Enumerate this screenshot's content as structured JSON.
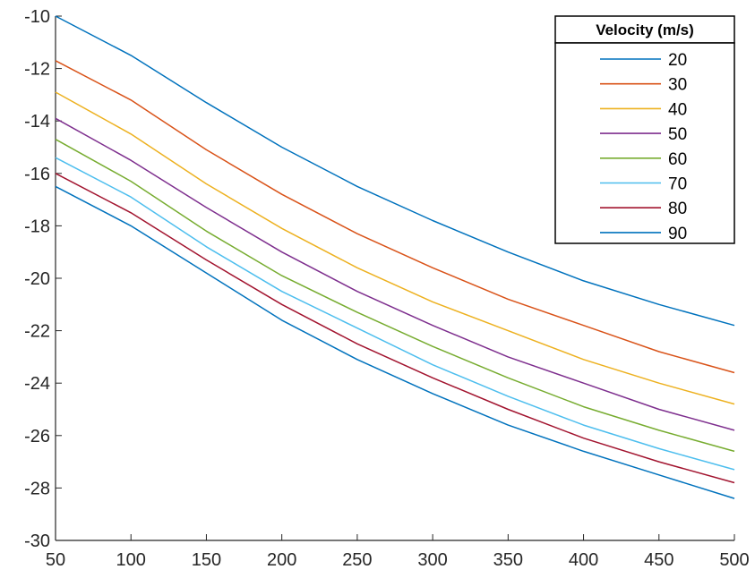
{
  "chart_data": {
    "type": "line",
    "title": "",
    "xlabel": "",
    "ylabel": "",
    "xlim": [
      50,
      500
    ],
    "ylim": [
      -30,
      -10
    ],
    "x_ticks": [
      "50",
      "100",
      "150",
      "200",
      "250",
      "300",
      "350",
      "400",
      "450",
      "500"
    ],
    "y_ticks": [
      "-10",
      "-12",
      "-14",
      "-16",
      "-18",
      "-20",
      "-22",
      "-24",
      "-26",
      "-28",
      "-30"
    ],
    "x": [
      50,
      100,
      150,
      200,
      250,
      300,
      350,
      400,
      450,
      500
    ],
    "legend": {
      "title": "Velocity (m/s)",
      "position": "top-right"
    },
    "series": [
      {
        "name": "20",
        "color": "#0072BD",
        "values": [
          -10.0,
          -11.5,
          -13.3,
          -15.0,
          -16.5,
          -17.8,
          -19.0,
          -20.1,
          -21.0,
          -21.8
        ]
      },
      {
        "name": "30",
        "color": "#D95319",
        "values": [
          -11.7,
          -13.2,
          -15.1,
          -16.8,
          -18.3,
          -19.6,
          -20.8,
          -21.8,
          -22.8,
          -23.6
        ]
      },
      {
        "name": "40",
        "color": "#EDB120",
        "values": [
          -12.9,
          -14.5,
          -16.4,
          -18.1,
          -19.6,
          -20.9,
          -22.0,
          -23.1,
          -24.0,
          -24.8
        ]
      },
      {
        "name": "50",
        "color": "#7E2F8E",
        "values": [
          -13.9,
          -15.5,
          -17.3,
          -19.0,
          -20.5,
          -21.8,
          -23.0,
          -24.0,
          -25.0,
          -25.8
        ]
      },
      {
        "name": "60",
        "color": "#77AC30",
        "values": [
          -14.7,
          -16.3,
          -18.2,
          -19.9,
          -21.3,
          -22.6,
          -23.8,
          -24.9,
          -25.8,
          -26.6
        ]
      },
      {
        "name": "70",
        "color": "#4DBEEE",
        "values": [
          -15.4,
          -16.9,
          -18.8,
          -20.5,
          -21.9,
          -23.3,
          -24.5,
          -25.6,
          -26.5,
          -27.3
        ]
      },
      {
        "name": "80",
        "color": "#A2142F",
        "values": [
          -16.0,
          -17.5,
          -19.3,
          -21.0,
          -22.5,
          -23.8,
          -25.0,
          -26.1,
          -27.0,
          -27.8
        ]
      },
      {
        "name": "90",
        "color": "#0072BD",
        "values": [
          -16.5,
          -18.0,
          -19.8,
          -21.6,
          -23.1,
          -24.4,
          -25.6,
          -26.6,
          -27.5,
          -28.4
        ]
      }
    ]
  }
}
